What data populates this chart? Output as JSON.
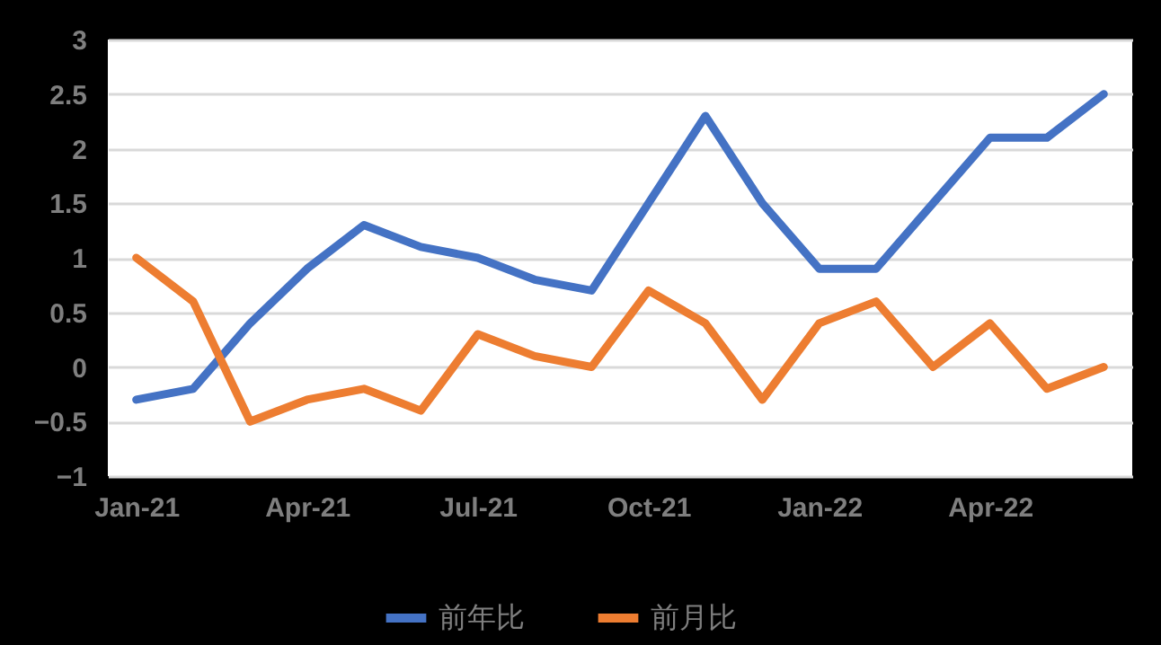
{
  "chart_data": {
    "type": "line",
    "categories": [
      "Jan-21",
      null,
      null,
      "Apr-21",
      null,
      null,
      "Jul-21",
      null,
      null,
      "Oct-21",
      null,
      null,
      "Jan-22",
      null,
      null,
      "Apr-22",
      null,
      null
    ],
    "series": [
      {
        "name": "前年比",
        "color": "#4472c4",
        "values": [
          -0.3,
          -0.2,
          0.4,
          0.9,
          1.3,
          1.1,
          1.0,
          0.8,
          0.7,
          1.5,
          2.3,
          1.5,
          0.9,
          0.9,
          1.5,
          2.1,
          2.1,
          2.5
        ]
      },
      {
        "name": "前月比",
        "color": "#ed7d31",
        "values": [
          1.0,
          0.6,
          -0.5,
          -0.3,
          -0.2,
          -0.4,
          0.3,
          0.1,
          0.0,
          0.7,
          0.4,
          -0.3,
          0.4,
          0.6,
          0.0,
          0.4,
          -0.2,
          0.0
        ]
      }
    ],
    "ylim": [
      -1,
      3
    ],
    "yticks": [
      -1,
      -0.5,
      0,
      0.5,
      1,
      1.5,
      2,
      2.5,
      3
    ],
    "grid": "y",
    "legend": "bottom",
    "marker": "none",
    "line_style": "solid"
  }
}
